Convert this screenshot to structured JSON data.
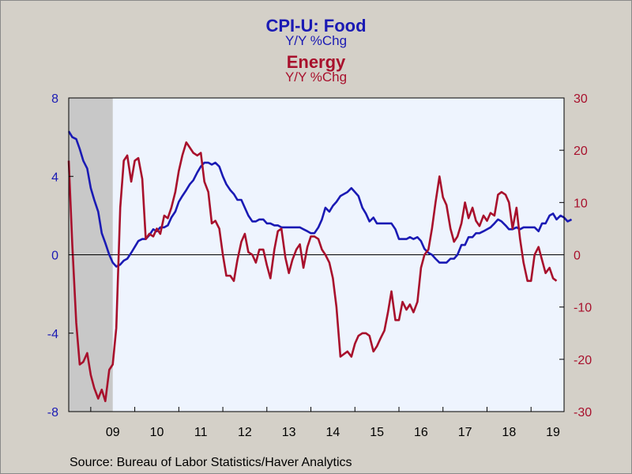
{
  "title": {
    "series1_name": "CPI-U: Food",
    "series1_unit": "Y/Y %Chg",
    "series2_name": "Energy",
    "series2_unit": "Y/Y %Chg"
  },
  "source": "Source:  Bureau of Labor Statistics/Haver Analytics",
  "colors": {
    "food": "#1a1ab4",
    "energy": "#a8102c",
    "plot_bg": "#eef4fe",
    "recession": "#c8c8c8"
  },
  "chart_data": {
    "type": "line",
    "x_tick_labels": [
      "09",
      "10",
      "11",
      "12",
      "13",
      "14",
      "15",
      "16",
      "17",
      "18",
      "19"
    ],
    "x_range": [
      2008.5,
      2019.75
    ],
    "recession_shading": [
      2008.5,
      2009.5
    ],
    "left_axis": {
      "ticks": [
        "8",
        "4",
        "0",
        "-4",
        "-8"
      ],
      "range": [
        -8,
        8
      ],
      "series": "food"
    },
    "right_axis": {
      "ticks": [
        "30",
        "20",
        "10",
        "0",
        "-10",
        "-20",
        "-30"
      ],
      "range": [
        -30,
        30
      ],
      "series": "energy"
    },
    "zero_line": true,
    "series": [
      {
        "name": "CPI-U: Food",
        "axis": "left",
        "points": [
          [
            2008.5,
            6.3
          ],
          [
            2008.58,
            6.0
          ],
          [
            2008.67,
            5.9
          ],
          [
            2008.75,
            5.4
          ],
          [
            2008.83,
            4.8
          ],
          [
            2008.92,
            4.4
          ],
          [
            2009.0,
            3.4
          ],
          [
            2009.08,
            2.8
          ],
          [
            2009.17,
            2.2
          ],
          [
            2009.25,
            1.1
          ],
          [
            2009.33,
            0.6
          ],
          [
            2009.42,
            0.0
          ],
          [
            2009.5,
            -0.4
          ],
          [
            2009.58,
            -0.6
          ],
          [
            2009.67,
            -0.5
          ],
          [
            2009.75,
            -0.3
          ],
          [
            2009.83,
            -0.2
          ],
          [
            2009.92,
            0.1
          ],
          [
            2010.0,
            0.4
          ],
          [
            2010.08,
            0.7
          ],
          [
            2010.17,
            0.8
          ],
          [
            2010.25,
            0.8
          ],
          [
            2010.33,
            1.0
          ],
          [
            2010.42,
            1.3
          ],
          [
            2010.5,
            1.2
          ],
          [
            2010.58,
            1.4
          ],
          [
            2010.67,
            1.4
          ],
          [
            2010.75,
            1.5
          ],
          [
            2010.83,
            1.9
          ],
          [
            2010.92,
            2.2
          ],
          [
            2011.0,
            2.7
          ],
          [
            2011.08,
            3.0
          ],
          [
            2011.17,
            3.3
          ],
          [
            2011.25,
            3.6
          ],
          [
            2011.33,
            3.8
          ],
          [
            2011.42,
            4.2
          ],
          [
            2011.5,
            4.5
          ],
          [
            2011.58,
            4.7
          ],
          [
            2011.67,
            4.7
          ],
          [
            2011.75,
            4.6
          ],
          [
            2011.83,
            4.7
          ],
          [
            2011.92,
            4.5
          ],
          [
            2012.0,
            4.0
          ],
          [
            2012.08,
            3.6
          ],
          [
            2012.17,
            3.3
          ],
          [
            2012.25,
            3.1
          ],
          [
            2012.33,
            2.8
          ],
          [
            2012.42,
            2.8
          ],
          [
            2012.5,
            2.4
          ],
          [
            2012.58,
            2.0
          ],
          [
            2012.67,
            1.7
          ],
          [
            2012.75,
            1.7
          ],
          [
            2012.83,
            1.8
          ],
          [
            2012.92,
            1.8
          ],
          [
            2013.0,
            1.6
          ],
          [
            2013.08,
            1.6
          ],
          [
            2013.17,
            1.5
          ],
          [
            2013.25,
            1.5
          ],
          [
            2013.33,
            1.4
          ],
          [
            2013.42,
            1.4
          ],
          [
            2013.5,
            1.4
          ],
          [
            2013.58,
            1.4
          ],
          [
            2013.67,
            1.4
          ],
          [
            2013.75,
            1.4
          ],
          [
            2013.83,
            1.3
          ],
          [
            2013.92,
            1.2
          ],
          [
            2014.0,
            1.1
          ],
          [
            2014.08,
            1.1
          ],
          [
            2014.17,
            1.4
          ],
          [
            2014.25,
            1.8
          ],
          [
            2014.33,
            2.4
          ],
          [
            2014.42,
            2.2
          ],
          [
            2014.5,
            2.5
          ],
          [
            2014.58,
            2.7
          ],
          [
            2014.67,
            3.0
          ],
          [
            2014.75,
            3.1
          ],
          [
            2014.83,
            3.2
          ],
          [
            2014.92,
            3.4
          ],
          [
            2015.0,
            3.2
          ],
          [
            2015.08,
            3.0
          ],
          [
            2015.17,
            2.4
          ],
          [
            2015.25,
            2.1
          ],
          [
            2015.33,
            1.7
          ],
          [
            2015.42,
            1.9
          ],
          [
            2015.5,
            1.6
          ],
          [
            2015.58,
            1.6
          ],
          [
            2015.67,
            1.6
          ],
          [
            2015.75,
            1.6
          ],
          [
            2015.83,
            1.6
          ],
          [
            2015.92,
            1.3
          ],
          [
            2016.0,
            0.8
          ],
          [
            2016.08,
            0.8
          ],
          [
            2016.17,
            0.8
          ],
          [
            2016.25,
            0.9
          ],
          [
            2016.33,
            0.8
          ],
          [
            2016.42,
            0.9
          ],
          [
            2016.5,
            0.7
          ],
          [
            2016.58,
            0.3
          ],
          [
            2016.67,
            0.1
          ],
          [
            2016.75,
            0.0
          ],
          [
            2016.83,
            -0.2
          ],
          [
            2016.92,
            -0.4
          ],
          [
            2017.0,
            -0.4
          ],
          [
            2017.08,
            -0.4
          ],
          [
            2017.17,
            -0.2
          ],
          [
            2017.25,
            -0.2
          ],
          [
            2017.33,
            0.0
          ],
          [
            2017.42,
            0.5
          ],
          [
            2017.5,
            0.5
          ],
          [
            2017.58,
            0.9
          ],
          [
            2017.67,
            0.9
          ],
          [
            2017.75,
            1.1
          ],
          [
            2017.83,
            1.1
          ],
          [
            2017.92,
            1.2
          ],
          [
            2018.0,
            1.3
          ],
          [
            2018.08,
            1.4
          ],
          [
            2018.17,
            1.6
          ],
          [
            2018.25,
            1.8
          ],
          [
            2018.33,
            1.7
          ],
          [
            2018.42,
            1.5
          ],
          [
            2018.5,
            1.3
          ],
          [
            2018.58,
            1.3
          ],
          [
            2018.67,
            1.4
          ],
          [
            2018.75,
            1.3
          ],
          [
            2018.83,
            1.4
          ],
          [
            2018.92,
            1.4
          ],
          [
            2019.0,
            1.4
          ],
          [
            2019.08,
            1.4
          ],
          [
            2019.17,
            1.2
          ],
          [
            2019.25,
            1.6
          ],
          [
            2019.33,
            1.6
          ],
          [
            2019.42,
            2.0
          ],
          [
            2019.5,
            2.1
          ],
          [
            2019.58,
            1.8
          ],
          [
            2019.67,
            2.0
          ],
          [
            2019.75,
            1.9
          ],
          [
            2019.83,
            1.7
          ],
          [
            2019.92,
            1.8
          ]
        ]
      },
      {
        "name": "Energy",
        "axis": "right",
        "points": [
          [
            2008.5,
            18.0
          ],
          [
            2008.58,
            2.0
          ],
          [
            2008.67,
            -13.0
          ],
          [
            2008.75,
            -21.0
          ],
          [
            2008.83,
            -20.5
          ],
          [
            2008.92,
            -18.8
          ],
          [
            2009.0,
            -23.0
          ],
          [
            2009.08,
            -25.5
          ],
          [
            2009.17,
            -27.5
          ],
          [
            2009.25,
            -25.8
          ],
          [
            2009.33,
            -28.0
          ],
          [
            2009.42,
            -22.0
          ],
          [
            2009.5,
            -21.0
          ],
          [
            2009.58,
            -14.0
          ],
          [
            2009.67,
            9.0
          ],
          [
            2009.75,
            18.0
          ],
          [
            2009.83,
            19.0
          ],
          [
            2009.92,
            14.0
          ],
          [
            2010.0,
            18.0
          ],
          [
            2010.08,
            18.5
          ],
          [
            2010.17,
            14.5
          ],
          [
            2010.25,
            3.0
          ],
          [
            2010.33,
            4.0
          ],
          [
            2010.42,
            3.5
          ],
          [
            2010.5,
            5.0
          ],
          [
            2010.58,
            4.0
          ],
          [
            2010.67,
            7.5
          ],
          [
            2010.75,
            7.0
          ],
          [
            2010.83,
            9.0
          ],
          [
            2010.92,
            12.0
          ],
          [
            2011.0,
            16.0
          ],
          [
            2011.08,
            19.0
          ],
          [
            2011.17,
            21.5
          ],
          [
            2011.25,
            20.5
          ],
          [
            2011.33,
            19.5
          ],
          [
            2011.42,
            19.0
          ],
          [
            2011.5,
            19.5
          ],
          [
            2011.58,
            14.0
          ],
          [
            2011.67,
            12.0
          ],
          [
            2011.75,
            6.0
          ],
          [
            2011.83,
            6.5
          ],
          [
            2011.92,
            5.0
          ],
          [
            2012.0,
            0.0
          ],
          [
            2012.08,
            -4.0
          ],
          [
            2012.17,
            -4.0
          ],
          [
            2012.25,
            -5.0
          ],
          [
            2012.33,
            -1.0
          ],
          [
            2012.42,
            2.5
          ],
          [
            2012.5,
            4.0
          ],
          [
            2012.58,
            0.5
          ],
          [
            2012.67,
            0.0
          ],
          [
            2012.75,
            -1.5
          ],
          [
            2012.83,
            1.0
          ],
          [
            2012.92,
            1.0
          ],
          [
            2013.0,
            -2.0
          ],
          [
            2013.08,
            -4.5
          ],
          [
            2013.17,
            1.0
          ],
          [
            2013.25,
            4.5
          ],
          [
            2013.33,
            5.0
          ],
          [
            2013.42,
            -0.5
          ],
          [
            2013.5,
            -3.5
          ],
          [
            2013.58,
            -1.0
          ],
          [
            2013.67,
            1.0
          ],
          [
            2013.75,
            2.0
          ],
          [
            2013.83,
            -2.5
          ],
          [
            2013.92,
            1.5
          ],
          [
            2014.0,
            3.5
          ],
          [
            2014.08,
            3.5
          ],
          [
            2014.17,
            3.0
          ],
          [
            2014.25,
            1.0
          ],
          [
            2014.33,
            0.0
          ],
          [
            2014.42,
            -1.5
          ],
          [
            2014.5,
            -4.5
          ],
          [
            2014.58,
            -10.0
          ],
          [
            2014.67,
            -19.5
          ],
          [
            2014.75,
            -19.0
          ],
          [
            2014.83,
            -18.5
          ],
          [
            2014.92,
            -19.5
          ],
          [
            2015.0,
            -17.0
          ],
          [
            2015.08,
            -15.5
          ],
          [
            2015.17,
            -15.0
          ],
          [
            2015.25,
            -15.0
          ],
          [
            2015.33,
            -15.5
          ],
          [
            2015.42,
            -18.5
          ],
          [
            2015.5,
            -17.5
          ],
          [
            2015.58,
            -16.0
          ],
          [
            2015.67,
            -14.5
          ],
          [
            2015.75,
            -11.0
          ],
          [
            2015.83,
            -7.0
          ],
          [
            2015.92,
            -12.5
          ],
          [
            2016.0,
            -12.5
          ],
          [
            2016.08,
            -9.0
          ],
          [
            2016.17,
            -10.5
          ],
          [
            2016.25,
            -9.5
          ],
          [
            2016.33,
            -11.0
          ],
          [
            2016.42,
            -9.0
          ],
          [
            2016.5,
            -2.5
          ],
          [
            2016.58,
            0.0
          ],
          [
            2016.67,
            1.0
          ],
          [
            2016.75,
            5.0
          ],
          [
            2016.83,
            10.0
          ],
          [
            2016.92,
            15.0
          ],
          [
            2017.0,
            11.0
          ],
          [
            2017.08,
            9.5
          ],
          [
            2017.17,
            5.0
          ],
          [
            2017.25,
            2.5
          ],
          [
            2017.33,
            3.5
          ],
          [
            2017.42,
            6.0
          ],
          [
            2017.5,
            10.0
          ],
          [
            2017.58,
            7.0
          ],
          [
            2017.67,
            9.0
          ],
          [
            2017.75,
            6.5
          ],
          [
            2017.83,
            5.5
          ],
          [
            2017.92,
            7.5
          ],
          [
            2018.0,
            6.5
          ],
          [
            2018.08,
            8.0
          ],
          [
            2018.17,
            7.5
          ],
          [
            2018.25,
            11.5
          ],
          [
            2018.33,
            12.0
          ],
          [
            2018.42,
            11.5
          ],
          [
            2018.5,
            10.0
          ],
          [
            2018.58,
            5.0
          ],
          [
            2018.67,
            9.0
          ],
          [
            2018.75,
            3.0
          ],
          [
            2018.83,
            -1.5
          ],
          [
            2018.92,
            -5.0
          ],
          [
            2019.0,
            -5.0
          ],
          [
            2019.08,
            0.0
          ],
          [
            2019.17,
            1.5
          ],
          [
            2019.25,
            -1.0
          ],
          [
            2019.33,
            -3.5
          ],
          [
            2019.42,
            -2.5
          ],
          [
            2019.5,
            -4.5
          ],
          [
            2019.58,
            -5.0
          ]
        ]
      }
    ]
  }
}
